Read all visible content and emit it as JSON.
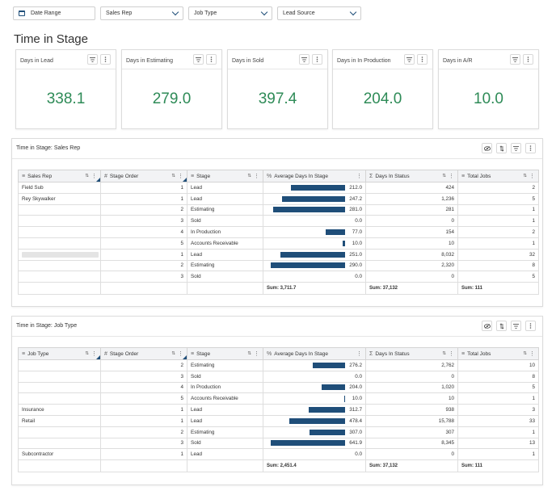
{
  "filters": [
    {
      "label": "Date Range",
      "icon": "calendar-icon"
    },
    {
      "label": "Sales Rep"
    },
    {
      "label": "Job Type"
    },
    {
      "label": "Lead Source"
    }
  ],
  "page_title": "Time in Stage",
  "cards": [
    {
      "title": "Days in Lead",
      "value": "338.1"
    },
    {
      "title": "Days in Estimating",
      "value": "279.0"
    },
    {
      "title": "Days in Sold",
      "value": "397.4"
    },
    {
      "title": "Days in In Production",
      "value": "204.0"
    },
    {
      "title": "Days in A/R",
      "value": "10.0"
    }
  ],
  "colors": {
    "accent": "#1f4e79",
    "value_green": "#2e8b57"
  },
  "tables": [
    {
      "title": "Time in Stage: Sales Rep",
      "columns": [
        "Sales Rep",
        "Stage Order",
        "Stage",
        "Average Days In Stage",
        "Days In Status",
        "Total Jobs"
      ],
      "rows": [
        {
          "name": "Field Sub",
          "order": "1",
          "stage": "Lead",
          "avg": 212.0,
          "avg_label": "212.0",
          "days": "424",
          "jobs": "2"
        },
        {
          "name": "Rey Skywalker",
          "order": "1",
          "stage": "Lead",
          "avg": 247.2,
          "avg_label": "247.2",
          "days": "1,236",
          "jobs": "5"
        },
        {
          "name": "",
          "order": "2",
          "stage": "Estimating",
          "avg": 281.0,
          "avg_label": "281.0",
          "days": "281",
          "jobs": "1"
        },
        {
          "name": "",
          "order": "3",
          "stage": "Sold",
          "avg": 0.0,
          "avg_label": "0.0",
          "days": "0",
          "jobs": "1"
        },
        {
          "name": "",
          "order": "4",
          "stage": "In Production",
          "avg": 77.0,
          "avg_label": "77.0",
          "days": "154",
          "jobs": "2"
        },
        {
          "name": "",
          "order": "5",
          "stage": "Accounts Receivable",
          "avg": 10.0,
          "avg_label": "10.0",
          "days": "10",
          "jobs": "1"
        },
        {
          "name": "",
          "redacted": true,
          "order": "1",
          "stage": "Lead",
          "avg": 251.0,
          "avg_label": "251.0",
          "days": "8,032",
          "jobs": "32"
        },
        {
          "name": "",
          "order": "2",
          "stage": "Estimating",
          "avg": 290.0,
          "avg_label": "290.0",
          "days": "2,320",
          "jobs": "8"
        },
        {
          "name": "",
          "order": "3",
          "stage": "Sold",
          "avg": 0.0,
          "avg_label": "0.0",
          "days": "0",
          "jobs": "5"
        }
      ],
      "sums": {
        "avg": "Sum: 3,711.7",
        "days": "Sum: 37,132",
        "jobs": "Sum: 111"
      }
    },
    {
      "title": "Time in Stage: Job Type",
      "columns": [
        "Job Type",
        "Stage Order",
        "Stage",
        "Average Days In Stage",
        "Days In Status",
        "Total Jobs"
      ],
      "rows": [
        {
          "name": "",
          "order": "2",
          "stage": "Estimating",
          "avg": 276.2,
          "avg_label": "276.2",
          "days": "2,762",
          "jobs": "10"
        },
        {
          "name": "",
          "order": "3",
          "stage": "Sold",
          "avg": 0.0,
          "avg_label": "0.0",
          "days": "0",
          "jobs": "8"
        },
        {
          "name": "",
          "order": "4",
          "stage": "In Production",
          "avg": 204.0,
          "avg_label": "204.0",
          "days": "1,020",
          "jobs": "5"
        },
        {
          "name": "",
          "order": "5",
          "stage": "Accounts Receivable",
          "avg": 10.0,
          "avg_label": "10.0",
          "days": "10",
          "jobs": "1"
        },
        {
          "name": "Insurance",
          "order": "1",
          "stage": "Lead",
          "avg": 312.7,
          "avg_label": "312.7",
          "days": "938",
          "jobs": "3"
        },
        {
          "name": "Retail",
          "order": "1",
          "stage": "Lead",
          "avg": 478.4,
          "avg_label": "478.4",
          "days": "15,788",
          "jobs": "33"
        },
        {
          "name": "",
          "order": "2",
          "stage": "Estimating",
          "avg": 307.0,
          "avg_label": "307.0",
          "days": "307",
          "jobs": "1"
        },
        {
          "name": "",
          "order": "3",
          "stage": "Sold",
          "avg": 641.9,
          "avg_label": "641.9",
          "days": "8,345",
          "jobs": "13"
        },
        {
          "name": "Subcontractor",
          "order": "1",
          "stage": "Lead",
          "avg": 0.0,
          "avg_label": "0.0",
          "days": "0",
          "jobs": "1"
        }
      ],
      "sums": {
        "avg": "Sum: 2,451.4",
        "days": "Sum: 37,132",
        "jobs": "Sum: 111"
      }
    }
  ]
}
